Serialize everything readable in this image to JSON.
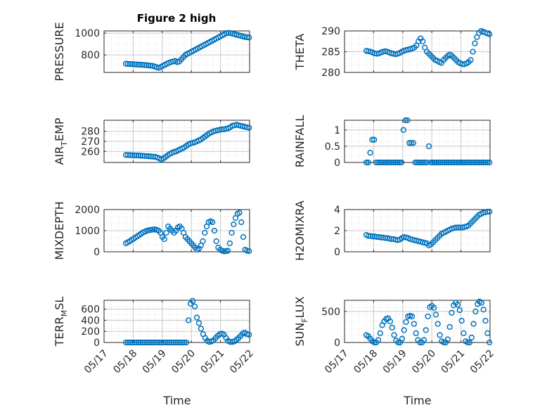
{
  "figure": {
    "title": "Figure 2 high",
    "xlabel": "Time",
    "x_tick_labels": [
      "05/17",
      "05/18",
      "05/19",
      "05/20",
      "05/21",
      "05/22"
    ],
    "marker_color": "#0072BD"
  },
  "chart_data": [
    {
      "type": "scatter",
      "ylabel": {
        "main": "PRESSURE",
        "sub": ""
      },
      "xlim": [
        0,
        5
      ],
      "ylim": [
        640,
        1020
      ],
      "yticks": [
        800,
        1000
      ],
      "x_start": 0.75,
      "x_end": 4.98,
      "values": [
        720,
        718,
        717,
        716,
        714,
        713,
        712,
        711,
        710,
        708,
        706,
        704,
        702,
        700,
        694,
        688,
        682,
        690,
        700,
        710,
        720,
        728,
        735,
        740,
        745,
        735,
        740,
        760,
        780,
        800,
        810,
        820,
        830,
        840,
        850,
        860,
        870,
        880,
        890,
        900,
        910,
        920,
        930,
        940,
        950,
        960,
        970,
        980,
        990,
        1000,
        1002,
        1000,
        995,
        990,
        985,
        980,
        975,
        970,
        965,
        962,
        960
      ]
    },
    {
      "type": "scatter",
      "ylabel": {
        "main": "THETA",
        "sub": ""
      },
      "xlim": [
        0,
        5
      ],
      "ylim": [
        280,
        290
      ],
      "yticks": [
        280,
        285,
        290
      ],
      "x_start": 0.75,
      "x_end": 4.98,
      "values": [
        285.2,
        285.1,
        285,
        284.8,
        284.6,
        284.5,
        284.6,
        284.8,
        285,
        285.1,
        285,
        284.8,
        284.6,
        284.5,
        284.4,
        284.5,
        284.7,
        285,
        285.2,
        285.4,
        285.5,
        285.6,
        285.8,
        286,
        286.5,
        287.5,
        288.2,
        287.5,
        286,
        285,
        284.5,
        284,
        283.5,
        283,
        282.8,
        282.5,
        282.3,
        283,
        283.5,
        284,
        284.3,
        284,
        283.5,
        283,
        282.5,
        282.2,
        282,
        282,
        282.2,
        282.5,
        283,
        285,
        287,
        288.5,
        289.5,
        290,
        289.8,
        289.6,
        289.4,
        289.2
      ]
    },
    {
      "type": "scatter",
      "ylabel": {
        "main": "AIR",
        "sub": "T",
        "tail": "EMP"
      },
      "xlim": [
        0,
        5
      ],
      "ylim": [
        249,
        291
      ],
      "yticks": [
        260,
        270,
        280
      ],
      "x_start": 0.75,
      "x_end": 4.98,
      "values": [
        256.5,
        256.4,
        256.3,
        256.2,
        256.1,
        256,
        255.9,
        255.8,
        255.6,
        255.5,
        255.3,
        255.2,
        255,
        254.8,
        254.6,
        254,
        253,
        252,
        253,
        254.5,
        256,
        257.5,
        258.5,
        259.5,
        260,
        261,
        262,
        263,
        264,
        265.5,
        267,
        268,
        268.5,
        269,
        270,
        271,
        272,
        273.5,
        275,
        276.5,
        278,
        279,
        280,
        280.5,
        281,
        281.5,
        282,
        282,
        282.5,
        283,
        284,
        285.5,
        286,
        286.5,
        286,
        285.5,
        285,
        284.5,
        284,
        283.5
      ]
    },
    {
      "type": "scatter",
      "ylabel": {
        "main": "RAINFALL",
        "sub": ""
      },
      "xlim": [
        0,
        5
      ],
      "ylim": [
        0,
        1.3
      ],
      "yticks": [
        0,
        0.5,
        1
      ],
      "x_start": 0.75,
      "x_end": 4.98,
      "values": [
        0,
        0,
        0.3,
        0.7,
        0.7,
        0,
        0,
        0,
        0,
        0,
        0,
        0,
        0,
        0,
        0,
        0,
        0,
        0,
        0,
        1.0,
        1.3,
        1.3,
        0.6,
        0.6,
        0.6,
        0,
        0,
        0,
        0,
        0,
        0,
        0,
        0.5,
        0,
        0,
        0,
        0,
        0,
        0,
        0,
        0,
        0,
        0,
        0,
        0,
        0,
        0,
        0,
        0,
        0,
        0,
        0,
        0,
        0,
        0,
        0,
        0,
        0,
        0,
        0,
        0,
        0,
        0,
        0
      ]
    },
    {
      "type": "scatter",
      "ylabel": {
        "main": "MIXDEPTH",
        "sub": ""
      },
      "xlim": [
        0,
        5
      ],
      "ylim": [
        0,
        2000
      ],
      "yticks": [
        0,
        1000,
        2000
      ],
      "x_start": 0.75,
      "x_end": 4.98,
      "values": [
        400,
        450,
        500,
        560,
        620,
        680,
        740,
        800,
        860,
        920,
        960,
        1000,
        1020,
        1040,
        1050,
        1060,
        1040,
        1000,
        900,
        700,
        600,
        900,
        1200,
        1100,
        1000,
        900,
        1000,
        1150,
        1200,
        1100,
        900,
        700,
        600,
        500,
        400,
        300,
        200,
        100,
        150,
        300,
        500,
        900,
        1200,
        1400,
        1450,
        1400,
        1000,
        500,
        200,
        100,
        50,
        20,
        30,
        50,
        400,
        900,
        1300,
        1600,
        1800,
        1850,
        1400,
        700,
        100,
        50,
        30
      ]
    },
    {
      "type": "scatter",
      "ylabel": {
        "main": "H2OMIXRA",
        "sub": ""
      },
      "xlim": [
        0,
        5
      ],
      "ylim": [
        0,
        4
      ],
      "yticks": [
        0,
        2,
        4
      ],
      "x_start": 0.75,
      "x_end": 4.98,
      "values": [
        1.6,
        1.5,
        1.5,
        1.45,
        1.45,
        1.4,
        1.4,
        1.35,
        1.35,
        1.3,
        1.3,
        1.25,
        1.2,
        1.2,
        1.15,
        1.1,
        1.15,
        1.3,
        1.4,
        1.35,
        1.3,
        1.2,
        1.15,
        1.1,
        1.05,
        1.0,
        0.95,
        0.9,
        0.85,
        0.8,
        0.6,
        0.7,
        0.9,
        1.1,
        1.3,
        1.5,
        1.7,
        1.8,
        1.9,
        2.0,
        2.1,
        2.2,
        2.25,
        2.3,
        2.3,
        2.3,
        2.3,
        2.35,
        2.4,
        2.5,
        2.7,
        2.9,
        3.1,
        3.3,
        3.5,
        3.6,
        3.7,
        3.75,
        3.8,
        3.8
      ]
    },
    {
      "type": "scatter",
      "ylabel": {
        "main": "TERR",
        "sub": "M",
        "tail": "SL"
      },
      "xlim": [
        0,
        5
      ],
      "ylim": [
        0,
        760
      ],
      "yticks": [
        0,
        200,
        400,
        600
      ],
      "x_start": 0.75,
      "x_end": 4.98,
      "values": [
        0,
        0,
        0,
        0,
        0,
        0,
        0,
        0,
        0,
        0,
        0,
        0,
        0,
        0,
        0,
        0,
        0,
        0,
        0,
        0,
        0,
        0,
        0,
        0,
        0,
        0,
        0,
        0,
        0,
        0,
        400,
        700,
        750,
        650,
        450,
        350,
        250,
        150,
        80,
        30,
        10,
        20,
        40,
        80,
        120,
        150,
        160,
        140,
        80,
        30,
        10,
        10,
        20,
        50,
        80,
        120,
        160,
        180,
        150,
        140
      ]
    },
    {
      "type": "scatter",
      "ylabel": {
        "main": "SUN",
        "sub": "F",
        "tail": "LUX"
      },
      "xlim": [
        0,
        5
      ],
      "ylim": [
        0,
        680
      ],
      "yticks": [
        0,
        500
      ],
      "x_start": 0.75,
      "x_end": 4.98,
      "values": [
        120,
        100,
        60,
        20,
        0,
        0,
        40,
        150,
        280,
        340,
        380,
        390,
        340,
        240,
        120,
        30,
        0,
        0,
        60,
        200,
        330,
        420,
        430,
        420,
        300,
        150,
        40,
        0,
        0,
        40,
        200,
        420,
        570,
        590,
        560,
        450,
        300,
        120,
        20,
        0,
        0,
        50,
        250,
        480,
        600,
        640,
        610,
        520,
        350,
        150,
        20,
        0,
        0,
        80,
        300,
        500,
        620,
        660,
        640,
        530,
        350,
        150,
        0
      ]
    }
  ]
}
